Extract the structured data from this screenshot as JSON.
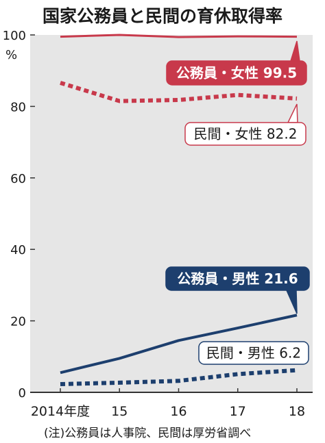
{
  "chart_data": {
    "type": "line",
    "title": "国家公務員と民間の育休取得率",
    "ylabel": "%",
    "ylim": [
      0,
      100
    ],
    "yticks": [
      0,
      20,
      40,
      60,
      80,
      100
    ],
    "categories": [
      "2014年度",
      "15",
      "16",
      "17",
      "18"
    ],
    "grid": false,
    "colors": {
      "background": "#e6e6e6",
      "female": "#c8394b",
      "male": "#1d3f6e",
      "axis": "#333333"
    },
    "series": [
      {
        "name": "公務員・女性",
        "label_value": "99.5",
        "style": "solid-female",
        "values": [
          99.5,
          100.0,
          99.4,
          99.6,
          99.5
        ]
      },
      {
        "name": "民間・女性",
        "label_value": "82.2",
        "style": "dotted-female",
        "values": [
          86.6,
          81.5,
          81.8,
          83.2,
          82.2
        ]
      },
      {
        "name": "公務員・男性",
        "label_value": "21.6",
        "style": "solid-male",
        "values": [
          5.5,
          9.5,
          14.5,
          18.0,
          21.6
        ]
      },
      {
        "name": "民間・男性",
        "label_value": "6.2",
        "style": "dotted-male",
        "values": [
          2.3,
          2.7,
          3.2,
          5.1,
          6.2
        ]
      }
    ],
    "note": "(注)公務員は人事院、民間は厚労省調べ"
  }
}
